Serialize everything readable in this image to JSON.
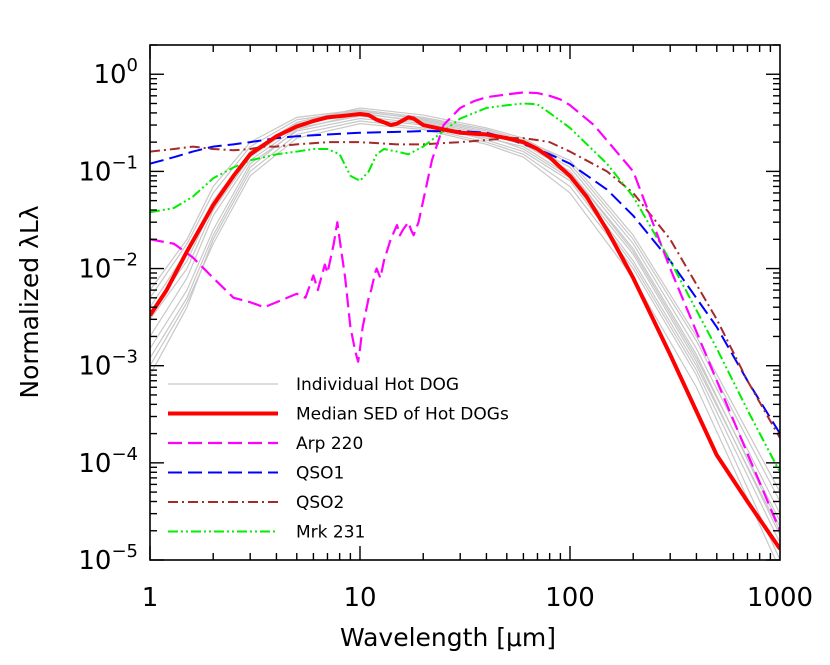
{
  "chart_data": {
    "type": "line",
    "xlabel": "Wavelength [μm]",
    "ylabel": "Normalized λLλ",
    "xscale": "log",
    "yscale": "log",
    "xlim": [
      1,
      1000
    ],
    "ylim": [
      1e-05,
      2
    ],
    "x_ticks": [
      {
        "value": 1,
        "label": "1"
      },
      {
        "value": 10,
        "label": "10"
      },
      {
        "value": 100,
        "label": "100"
      },
      {
        "value": 1000,
        "label": "1000"
      }
    ],
    "y_ticks": [
      {
        "value": 1,
        "base": "10",
        "exp": "0"
      },
      {
        "value": 0.1,
        "base": "10",
        "exp": "−1"
      },
      {
        "value": 0.01,
        "base": "10",
        "exp": "−2"
      },
      {
        "value": 0.001,
        "base": "10",
        "exp": "−3"
      },
      {
        "value": 0.0001,
        "base": "10",
        "exp": "−4"
      },
      {
        "value": 1e-05,
        "base": "10",
        "exp": "−5"
      }
    ],
    "grid": false,
    "legend_position": "bottom-left",
    "series": [
      {
        "name": "Individual Hot DOG",
        "color": "#c8c8c8",
        "style": "solid",
        "width": 1.2,
        "individual": [
          {
            "scale": 1.25,
            "x": [
              1,
              1.5,
              2,
              3,
              5,
              10,
              20,
              40,
              60,
              100,
              200,
              400,
              1000
            ],
            "y": [
              0.005,
              0.018,
              0.06,
              0.18,
              0.34,
              0.42,
              0.34,
              0.25,
              0.2,
              0.1,
              0.015,
              0.0012,
              2.5e-05
            ]
          },
          {
            "scale": 1.0,
            "x": [
              1,
              1.5,
              2,
              3,
              5,
              10,
              20,
              40,
              60,
              100,
              200,
              400,
              1000
            ],
            "y": [
              0.003,
              0.01,
              0.04,
              0.14,
              0.3,
              0.4,
              0.32,
              0.23,
              0.17,
              0.085,
              0.012,
              0.001,
              2e-05
            ]
          },
          {
            "scale": 0.85,
            "x": [
              1,
              1.5,
              2,
              3,
              5,
              10,
              20,
              40,
              60,
              100,
              200,
              400,
              1000
            ],
            "y": [
              0.0015,
              0.006,
              0.025,
              0.12,
              0.26,
              0.35,
              0.3,
              0.22,
              0.18,
              0.09,
              0.014,
              0.0011,
              1.8e-05
            ]
          },
          {
            "scale": 0.7,
            "x": [
              1,
              1.5,
              2,
              3,
              5,
              10,
              20,
              40,
              60,
              100,
              200,
              400,
              1000
            ],
            "y": [
              0.0008,
              0.004,
              0.02,
              0.1,
              0.24,
              0.33,
              0.28,
              0.2,
              0.15,
              0.07,
              0.01,
              0.0008,
              1e-05
            ]
          },
          {
            "scale": 1.15,
            "x": [
              1,
              1.5,
              2,
              3,
              5,
              10,
              20,
              40,
              60,
              100,
              200,
              400,
              1000
            ],
            "y": [
              0.004,
              0.015,
              0.05,
              0.16,
              0.32,
              0.45,
              0.38,
              0.28,
              0.22,
              0.12,
              0.02,
              0.0018,
              4e-05
            ]
          },
          {
            "scale": 0.9,
            "x": [
              1,
              1.5,
              2,
              3,
              5,
              10,
              20,
              40,
              60,
              100,
              200,
              400,
              1000
            ],
            "y": [
              0.002,
              0.008,
              0.035,
              0.13,
              0.28,
              0.37,
              0.31,
              0.21,
              0.16,
              0.08,
              0.011,
              0.0009,
              1.5e-05
            ]
          },
          {
            "scale": 1.05,
            "x": [
              1,
              1.5,
              2,
              3,
              5,
              10,
              20,
              40,
              60,
              100,
              200,
              400,
              1000
            ],
            "y": [
              0.0035,
              0.012,
              0.045,
              0.15,
              0.31,
              0.41,
              0.35,
              0.26,
              0.2,
              0.11,
              0.018,
              0.0015,
              3e-05
            ]
          },
          {
            "scale": 0.95,
            "x": [
              1,
              1.5,
              2,
              3,
              5,
              10,
              20,
              40,
              60,
              100,
              200,
              400,
              1000
            ],
            "y": [
              0.0012,
              0.005,
              0.022,
              0.11,
              0.27,
              0.39,
              0.33,
              0.24,
              0.19,
              0.1,
              0.016,
              0.0013,
              2.2e-05
            ]
          },
          {
            "scale": 1.2,
            "x": [
              1,
              1.5,
              2,
              3,
              5,
              10,
              20,
              40,
              60,
              100,
              200,
              400,
              1000
            ],
            "y": [
              0.006,
              0.02,
              0.07,
              0.2,
              0.36,
              0.43,
              0.36,
              0.27,
              0.21,
              0.13,
              0.022,
              0.002,
              5e-05
            ]
          },
          {
            "scale": 0.8,
            "x": [
              1,
              1.5,
              2,
              3,
              5,
              10,
              20,
              40,
              60,
              100,
              200,
              400,
              1000
            ],
            "y": [
              0.001,
              0.0045,
              0.018,
              0.09,
              0.22,
              0.31,
              0.27,
              0.19,
              0.14,
              0.06,
              0.008,
              0.0006,
              8e-06
            ]
          }
        ]
      },
      {
        "name": "Median SED of Hot DOGs",
        "color": "#ff0000",
        "style": "solid",
        "width": 4,
        "x": [
          1,
          1.2,
          1.5,
          2,
          2.5,
          3,
          4,
          5,
          6,
          7,
          8,
          9,
          10,
          11,
          12,
          13,
          14,
          15,
          17,
          18,
          20,
          25,
          30,
          40,
          50,
          60,
          70,
          80,
          90,
          100,
          120,
          150,
          200,
          300,
          500,
          700,
          1000
        ],
        "y": [
          0.0033,
          0.006,
          0.015,
          0.045,
          0.09,
          0.15,
          0.23,
          0.29,
          0.33,
          0.36,
          0.37,
          0.38,
          0.39,
          0.38,
          0.34,
          0.32,
          0.3,
          0.31,
          0.36,
          0.35,
          0.3,
          0.27,
          0.25,
          0.24,
          0.22,
          0.2,
          0.17,
          0.14,
          0.11,
          0.09,
          0.055,
          0.025,
          0.008,
          0.0013,
          0.00012,
          4e-05,
          1.3e-05
        ]
      },
      {
        "name": "Arp 220",
        "color": "#ff00ff",
        "style": "dashed",
        "width": 2.2,
        "x": [
          1,
          1.3,
          1.6,
          2,
          2.5,
          3,
          3.5,
          4,
          5,
          5.5,
          6,
          6.3,
          6.8,
          7,
          7.5,
          7.8,
          8,
          8.5,
          9,
          9.5,
          9.8,
          10,
          10.3,
          11,
          11.3,
          11.8,
          12,
          12.5,
          13,
          14,
          15,
          15.5,
          16,
          17,
          17.5,
          18,
          19,
          20,
          22,
          25,
          30,
          35,
          40,
          50,
          60,
          70,
          80,
          90,
          100,
          130,
          200,
          300,
          500,
          1000
        ],
        "y": [
          0.02,
          0.018,
          0.013,
          0.008,
          0.005,
          0.0045,
          0.004,
          0.0045,
          0.0055,
          0.005,
          0.0085,
          0.006,
          0.011,
          0.009,
          0.018,
          0.03,
          0.02,
          0.008,
          0.0025,
          0.0014,
          0.0011,
          0.0015,
          0.0025,
          0.005,
          0.006,
          0.009,
          0.01,
          0.008,
          0.012,
          0.02,
          0.028,
          0.022,
          0.025,
          0.03,
          0.025,
          0.022,
          0.03,
          0.05,
          0.13,
          0.3,
          0.45,
          0.53,
          0.58,
          0.62,
          0.65,
          0.64,
          0.6,
          0.55,
          0.48,
          0.3,
          0.1,
          0.01,
          0.0007,
          2e-05
        ]
      },
      {
        "name": "QSO1",
        "color": "#0000ff",
        "style": "dashed",
        "width": 2,
        "x": [
          1,
          1.3,
          1.6,
          2,
          2.5,
          3,
          4,
          5,
          7,
          10,
          15,
          20,
          30,
          40,
          50,
          60,
          70,
          80,
          100,
          150,
          200,
          300,
          500,
          700,
          1000
        ],
        "y": [
          0.12,
          0.14,
          0.16,
          0.18,
          0.19,
          0.2,
          0.22,
          0.23,
          0.24,
          0.25,
          0.255,
          0.26,
          0.26,
          0.25,
          0.22,
          0.19,
          0.17,
          0.15,
          0.12,
          0.065,
          0.035,
          0.012,
          0.0025,
          0.0007,
          0.0002
        ]
      },
      {
        "name": "QSO2",
        "color": "#a52a2a",
        "style": "dashdot",
        "width": 2,
        "x": [
          1,
          1.3,
          1.6,
          2,
          2.5,
          3,
          3.5,
          4,
          5,
          7,
          10,
          15,
          20,
          30,
          40,
          50,
          60,
          70,
          80,
          100,
          150,
          200,
          300,
          500,
          700,
          1000
        ],
        "y": [
          0.16,
          0.17,
          0.18,
          0.17,
          0.165,
          0.17,
          0.18,
          0.18,
          0.19,
          0.2,
          0.2,
          0.19,
          0.19,
          0.2,
          0.21,
          0.22,
          0.22,
          0.21,
          0.2,
          0.16,
          0.1,
          0.06,
          0.02,
          0.003,
          0.0007,
          0.00018
        ]
      },
      {
        "name": "Mrk 231",
        "color": "#00ee00",
        "style": "dashdotdot",
        "width": 2,
        "x": [
          1,
          1.3,
          1.6,
          2,
          2.5,
          3,
          3.5,
          4,
          5,
          6,
          7,
          8,
          9,
          10,
          11,
          12,
          13,
          15,
          17,
          20,
          25,
          30,
          40,
          50,
          60,
          70,
          80,
          100,
          150,
          200,
          300,
          500,
          700,
          1000
        ],
        "y": [
          0.038,
          0.042,
          0.055,
          0.085,
          0.11,
          0.13,
          0.14,
          0.15,
          0.16,
          0.17,
          0.17,
          0.15,
          0.09,
          0.08,
          0.1,
          0.15,
          0.17,
          0.16,
          0.15,
          0.18,
          0.26,
          0.35,
          0.45,
          0.48,
          0.5,
          0.49,
          0.4,
          0.28,
          0.12,
          0.055,
          0.012,
          0.0015,
          0.00035,
          8e-05
        ]
      }
    ]
  }
}
